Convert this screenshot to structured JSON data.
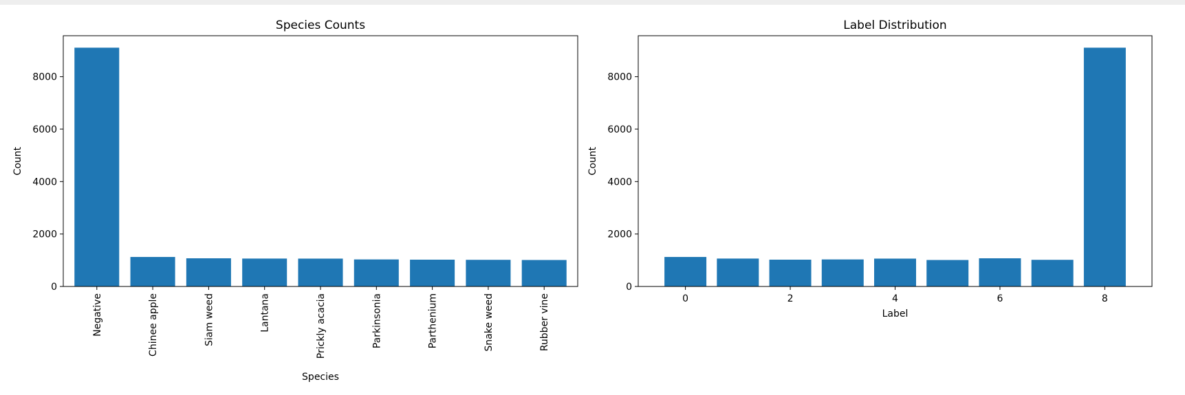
{
  "chart_data": [
    {
      "type": "bar",
      "title": "Species Counts",
      "xlabel": "Species",
      "ylabel": "Count",
      "categories": [
        "Negative",
        "Chinee apple",
        "Siam weed",
        "Lantana",
        "Prickly acacia",
        "Parkinsonia",
        "Parthenium",
        "Snake weed",
        "Rubber vine"
      ],
      "values": [
        9106,
        1125,
        1074,
        1064,
        1062,
        1031,
        1022,
        1016,
        1009
      ],
      "ylim": [
        0,
        9562
      ],
      "yticks": [
        0,
        2000,
        4000,
        6000,
        8000
      ],
      "grid": false,
      "bar_color": "#1f77b4"
    },
    {
      "type": "bar",
      "title": "Label Distribution",
      "xlabel": "Label",
      "ylabel": "Count",
      "x": [
        0,
        1,
        2,
        3,
        4,
        5,
        6,
        7,
        8
      ],
      "values": [
        1125,
        1064,
        1022,
        1031,
        1062,
        1009,
        1074,
        1016,
        9106
      ],
      "xlim": [
        -0.9,
        8.9
      ],
      "xticks": [
        0,
        2,
        4,
        6,
        8
      ],
      "ylim": [
        0,
        9562
      ],
      "yticks": [
        0,
        2000,
        4000,
        6000,
        8000
      ],
      "grid": false,
      "bar_color": "#1f77b4"
    }
  ]
}
